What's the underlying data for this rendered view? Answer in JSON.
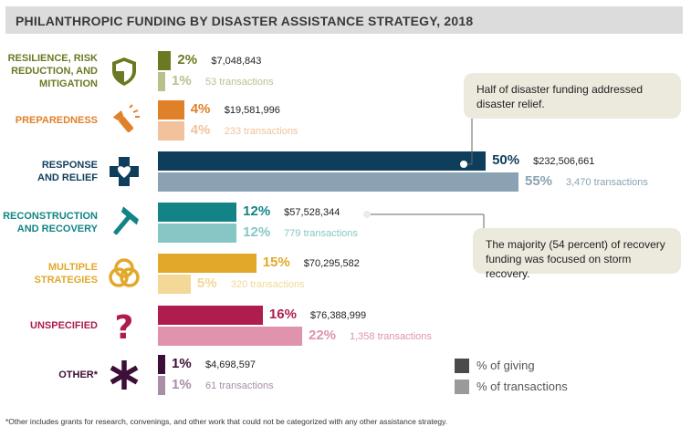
{
  "title": "PHILANTHROPIC FUNDING BY DISASTER ASSISTANCE STRATEGY, 2018",
  "chart_data": {
    "type": "bar",
    "orientation": "horizontal",
    "title": "PHILANTHROPIC FUNDING BY DISASTER ASSISTANCE STRATEGY, 2018",
    "categories": [
      {
        "key": "resilience",
        "label": "RESILIENCE, RISK\nREDUCTION, AND\nMITIGATION",
        "icon": "shield-icon",
        "giving_pct": 2,
        "giving_pct_label": "2%",
        "giving_amount": "$7,048,843",
        "trans_pct": 1,
        "trans_pct_label": "1%",
        "trans_label": "53 transactions",
        "color": "#6b7a22",
        "light": "#b9c08c"
      },
      {
        "key": "preparedness",
        "label": "PREPAREDNESS",
        "icon": "flashlight-icon",
        "giving_pct": 4,
        "giving_pct_label": "4%",
        "giving_amount": "$19,581,996",
        "trans_pct": 4,
        "trans_pct_label": "4%",
        "trans_label": "233 transactions",
        "color": "#e0812a",
        "light": "#f1c29b"
      },
      {
        "key": "response",
        "label": "RESPONSE\nAND RELIEF",
        "icon": "medical-heart-icon",
        "giving_pct": 50,
        "giving_pct_label": "50%",
        "giving_amount": "$232,506,661",
        "trans_pct": 55,
        "trans_pct_label": "55%",
        "trans_label": "3,470 transactions",
        "color": "#0f3e5c",
        "light": "#8aa2b3"
      },
      {
        "key": "reconstruction",
        "label": "RECONSTRUCTION\nAND RECOVERY",
        "icon": "hammer-icon",
        "giving_pct": 12,
        "giving_pct_label": "12%",
        "giving_amount": "$57,528,344",
        "trans_pct": 12,
        "trans_pct_label": "12%",
        "trans_label": "779 transactions",
        "color": "#138486",
        "light": "#86c7c6"
      },
      {
        "key": "multiple",
        "label": "MULTIPLE\nSTRATEGIES",
        "icon": "venn-icon",
        "giving_pct": 15,
        "giving_pct_label": "15%",
        "giving_amount": "$70,295,582",
        "trans_pct": 5,
        "trans_pct_label": "5%",
        "trans_label": "320 transactions",
        "color": "#e2a82a",
        "light": "#f3d898"
      },
      {
        "key": "unspecified",
        "label": "UNSPECIFIED",
        "icon": "question-icon",
        "giving_pct": 16,
        "giving_pct_label": "16%",
        "giving_amount": "$76,388,999",
        "trans_pct": 22,
        "trans_pct_label": "22%",
        "trans_label": "1,358 transactions",
        "color": "#ae1d4e",
        "light": "#df93ac"
      },
      {
        "key": "other",
        "label": "OTHER*",
        "icon": "asterisk-icon",
        "giving_pct": 1,
        "giving_pct_label": "1%",
        "giving_amount": "$4,698,597",
        "trans_pct": 1,
        "trans_pct_label": "1%",
        "trans_label": "61 transactions",
        "color": "#3c0f38",
        "light": "#a88fa6"
      }
    ],
    "series": [
      {
        "name": "% of giving",
        "color": "#4a4a4a"
      },
      {
        "name": "% of transactions",
        "color": "#9a9a9a"
      }
    ],
    "xlim": [
      0,
      55
    ]
  },
  "callouts": {
    "relief": "Half of disaster funding addressed disaster relief.",
    "recovery": "The majority (54 percent) of recovery funding was focused on storm recovery."
  },
  "footnote": "*Other includes grants for research, convenings, and other work that could not be categorized with any other assistance strategy."
}
